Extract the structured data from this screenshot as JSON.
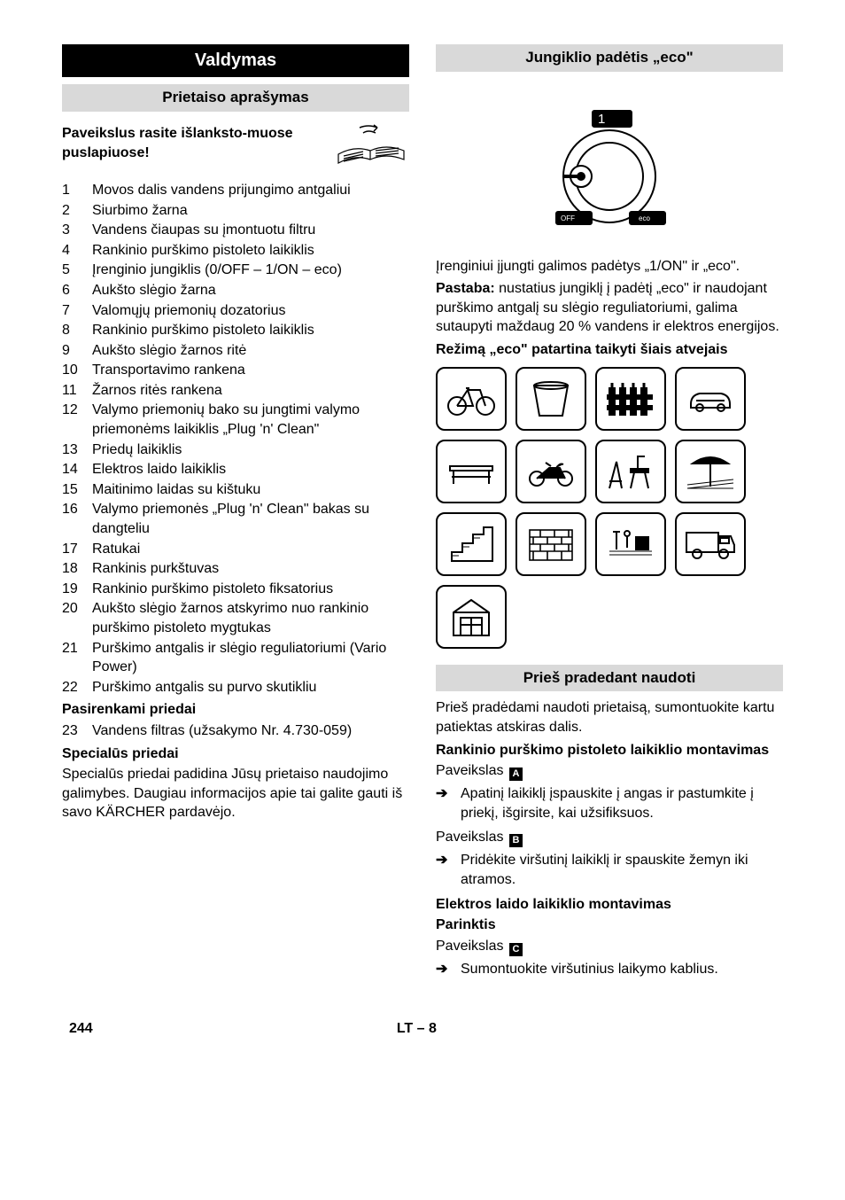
{
  "left": {
    "title": "Valdymas",
    "subtitle": "Prietaiso aprašymas",
    "lead": "Paveikslus rasite išlanksto-muose puslapiuose!",
    "items": [
      "Movos dalis vandens prijungimo antgaliui",
      "Siurbimo žarna",
      "Vandens čiaupas su įmontuotu filtru",
      "Rankinio purškimo pistoleto laikiklis",
      "Įrenginio jungiklis (0/OFF – 1/ON – eco)",
      "Aukšto slėgio žarna",
      "Valomųjų priemonių dozatorius",
      "Rankinio purškimo pistoleto laikiklis",
      "Aukšto slėgio žarnos ritė",
      "Transportavimo rankena",
      "Žarnos ritės rankena",
      "Valymo priemonių bako su jungtimi valymo priemonėms laikiklis „Plug 'n' Clean\"",
      "Priedų laikiklis",
      "Elektros laido laikiklis",
      "Maitinimo laidas su kištuku",
      "Valymo priemonės „Plug 'n' Clean\" bakas su dangteliu",
      "Ratukai",
      "Rankinis purkštuvas",
      "Rankinio purškimo pistoleto fiksatorius",
      "Aukšto slėgio žarnos atskyrimo nuo rankinio purškimo pistoleto mygtukas",
      "Purškimo antgalis ir slėgio reguliatoriumi (Vario Power)",
      "Purškimo antgalis su purvo skutikliu"
    ],
    "optHeader": "Pasirenkami priedai",
    "optItem": "Vandens filtras (užsakymo Nr. 4.730-059)",
    "specHeader": "Specialūs priedai",
    "specText": "Specialūs priedai padidina Jūsų prietaiso naudojimo galimybes. Daugiau informacijos apie tai galite gauti iš savo KÄRCHER pardavėjo."
  },
  "right": {
    "ecoTitle": "Jungiklio padėtis „eco\"",
    "ecoIntro": "Įrenginiui įjungti galimos padėtys „1/ON\" ir „eco\".",
    "noteLabel": "Pastaba:",
    "noteText": " nustatius jungiklį į padėtį „eco\" ir naudojant purškimo antgalį su slėgio reguliatoriumi, galima sutaupyti maždaug 20 % vandens ir elektros energijos.",
    "ecoCasesHeader": "Režimą „eco\" patartina taikyti šiais atvejais",
    "beforeTitle": "Prieš pradedant naudoti",
    "beforeIntro": "Prieš pradėdami naudoti prietaisą, sumontuokite kartu patiektas atskiras dalis.",
    "mount1Header": "Rankinio purškimo pistoleto laikiklio montavimas",
    "picA": "Paveikslas",
    "stepA": "Apatinį laikiklį įspauskite į angas ir pastumkite į priekį, išgirsite, kai užsifiksuos.",
    "picB": "Paveikslas",
    "stepB": "Pridėkite viršutinį laikiklį ir spauskite žemyn iki atramos.",
    "mount2Header": "Elektros laido laikiklio montavimas",
    "optionHeader": "Parinktis",
    "picC": "Paveikslas",
    "stepC": "Sumontuokite viršutinius laikymo kablius."
  },
  "footer": {
    "page": "244",
    "lang": "LT – 8"
  },
  "iconLabels": {
    "a": "A",
    "b": "B",
    "c": "C"
  }
}
